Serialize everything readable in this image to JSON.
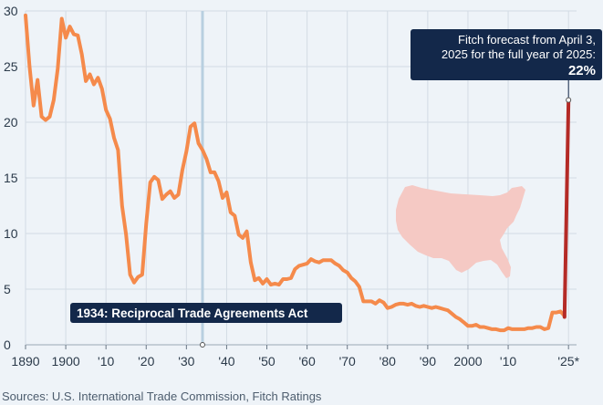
{
  "chart_data": {
    "type": "line",
    "title": "",
    "xlabel": "",
    "ylabel": "",
    "xlim": [
      1890,
      2027
    ],
    "ylim": [
      0,
      30
    ],
    "grid": true,
    "y_ticks": [
      0,
      5,
      10,
      15,
      20,
      25,
      30
    ],
    "x_ticks": [
      {
        "value": 1890,
        "label": "1890"
      },
      {
        "value": 1900,
        "label": "1900"
      },
      {
        "value": 1910,
        "label": "'10"
      },
      {
        "value": 1920,
        "label": "'20"
      },
      {
        "value": 1930,
        "label": "'30"
      },
      {
        "value": 1940,
        "label": "'40"
      },
      {
        "value": 1950,
        "label": "'50"
      },
      {
        "value": 1960,
        "label": "'60"
      },
      {
        "value": 1970,
        "label": "'70"
      },
      {
        "value": 1980,
        "label": "'80"
      },
      {
        "value": 1990,
        "label": "'90"
      },
      {
        "value": 2000,
        "label": "2000"
      },
      {
        "value": 2010,
        "label": "'10"
      },
      {
        "value": 2025,
        "label": "'25*"
      }
    ],
    "series": [
      {
        "color": "#f58a4b",
        "x": [
          1890,
          1891,
          1892,
          1893,
          1894,
          1895,
          1896,
          1897,
          1898,
          1899,
          1900,
          1901,
          1902,
          1903,
          1904,
          1905,
          1906,
          1907,
          1908,
          1909,
          1910,
          1911,
          1912,
          1913,
          1914,
          1915,
          1916,
          1917,
          1918,
          1919,
          1920,
          1921,
          1922,
          1923,
          1924,
          1925,
          1926,
          1927,
          1928,
          1929,
          1930,
          1931,
          1932,
          1933,
          1934,
          1935,
          1936,
          1937,
          1938,
          1939,
          1940,
          1941,
          1942,
          1943,
          1944,
          1945,
          1946,
          1947,
          1948,
          1949,
          1950,
          1951,
          1952,
          1953,
          1954,
          1955,
          1956,
          1957,
          1958,
          1959,
          1960,
          1961,
          1962,
          1963,
          1964,
          1965,
          1966,
          1967,
          1968,
          1969,
          1970,
          1971,
          1972,
          1973,
          1974,
          1975,
          1976,
          1977,
          1978,
          1979,
          1980,
          1981,
          1982,
          1983,
          1984,
          1985,
          1986,
          1987,
          1988,
          1989,
          1990,
          1991,
          1992,
          1993,
          1994,
          1995,
          1996,
          1997,
          1998,
          1999,
          2000,
          2001,
          2002,
          2003,
          2004,
          2005,
          2006,
          2007,
          2008,
          2009,
          2010,
          2011,
          2012,
          2013,
          2014,
          2015,
          2016,
          2017,
          2018,
          2019,
          2020,
          2021,
          2022,
          2023,
          2024
        ],
        "values": [
          29.6,
          25.0,
          21.5,
          23.8,
          20.5,
          20.2,
          20.5,
          22.0,
          24.8,
          29.3,
          27.6,
          28.6,
          27.9,
          27.8,
          26.1,
          23.7,
          24.3,
          23.4,
          24.0,
          23.0,
          21.1,
          20.3,
          18.6,
          17.5,
          12.5,
          9.9,
          6.3,
          5.6,
          6.1,
          6.3,
          10.9,
          14.6,
          15.1,
          14.8,
          13.1,
          13.5,
          13.8,
          13.2,
          13.5,
          15.7,
          17.4,
          19.6,
          19.9,
          18.1,
          17.5,
          16.7,
          15.5,
          15.5,
          14.7,
          13.2,
          13.7,
          11.9,
          11.6,
          9.9,
          9.6,
          10.2,
          7.4,
          5.8,
          6.0,
          5.5,
          5.9,
          5.4,
          5.5,
          5.4,
          5.9,
          5.9,
          6.0,
          6.8,
          7.1,
          7.2,
          7.3,
          7.7,
          7.5,
          7.4,
          7.6,
          7.6,
          7.6,
          7.3,
          7.1,
          6.7,
          6.5,
          6.0,
          5.7,
          5.2,
          3.9,
          3.9,
          3.9,
          3.7,
          4.0,
          3.8,
          3.3,
          3.4,
          3.6,
          3.7,
          3.7,
          3.6,
          3.7,
          3.5,
          3.4,
          3.5,
          3.4,
          3.3,
          3.4,
          3.3,
          3.2,
          3.1,
          2.8,
          2.5,
          2.3,
          2.0,
          1.7,
          1.7,
          1.8,
          1.6,
          1.6,
          1.5,
          1.4,
          1.4,
          1.3,
          1.3,
          1.5,
          1.4,
          1.4,
          1.4,
          1.4,
          1.5,
          1.5,
          1.6,
          1.6,
          1.4,
          1.5,
          2.9,
          2.9,
          3.0,
          2.6
        ]
      },
      {
        "color": "#b42a26",
        "x": [
          2024,
          2025
        ],
        "values": [
          2.5,
          22
        ]
      }
    ],
    "vertical_marker": {
      "x": 1934,
      "color": "#b8cfe0"
    },
    "annotations": {
      "forecast_line1": "Fitch forecast from April 3,",
      "forecast_line2": "2025 for the full year of 2025:",
      "forecast_value": "22%",
      "event_label": "1934: Reciprocal Trade Agreements Act"
    },
    "map_shape": "us-map-silhouette",
    "map_color": "#f5c9c4",
    "source": "Sources: U.S. International Trade Commission, Fitch Ratings"
  }
}
